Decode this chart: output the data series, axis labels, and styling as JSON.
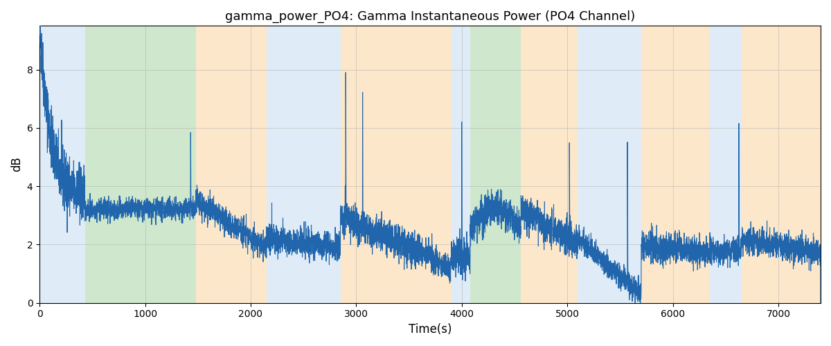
{
  "title": "gamma_power_PO4: Gamma Instantaneous Power (PO4 Channel)",
  "xlabel": "Time(s)",
  "ylabel": "dB",
  "ylim": [
    0,
    9.5
  ],
  "xlim": [
    0,
    7400
  ],
  "line_color": "#2166ac",
  "line_width": 0.8,
  "regions": [
    {
      "start": 0,
      "end": 430,
      "color": "#c5dcef",
      "alpha": 0.55
    },
    {
      "start": 430,
      "end": 1480,
      "color": "#a8d5a2",
      "alpha": 0.55
    },
    {
      "start": 1480,
      "end": 2150,
      "color": "#fad5a0",
      "alpha": 0.55
    },
    {
      "start": 2150,
      "end": 2620,
      "color": "#c5dcef",
      "alpha": 0.55
    },
    {
      "start": 2620,
      "end": 2850,
      "color": "#c5dcef",
      "alpha": 0.55
    },
    {
      "start": 2850,
      "end": 3900,
      "color": "#fad5a0",
      "alpha": 0.55
    },
    {
      "start": 3900,
      "end": 4080,
      "color": "#c5dcef",
      "alpha": 0.55
    },
    {
      "start": 4080,
      "end": 4560,
      "color": "#a8d5a2",
      "alpha": 0.55
    },
    {
      "start": 4560,
      "end": 5100,
      "color": "#fad5a0",
      "alpha": 0.55
    },
    {
      "start": 5100,
      "end": 5700,
      "color": "#c5dcef",
      "alpha": 0.55
    },
    {
      "start": 5700,
      "end": 6350,
      "color": "#fad5a0",
      "alpha": 0.55
    },
    {
      "start": 6350,
      "end": 6650,
      "color": "#c5dcef",
      "alpha": 0.55
    },
    {
      "start": 6650,
      "end": 7400,
      "color": "#fad5a0",
      "alpha": 0.55
    }
  ],
  "xticks": [
    0,
    1000,
    2000,
    3000,
    4000,
    5000,
    6000,
    7000
  ],
  "yticks": [
    0,
    2,
    4,
    6,
    8
  ],
  "seed": 42,
  "figsize": [
    12,
    5
  ],
  "dpi": 100
}
